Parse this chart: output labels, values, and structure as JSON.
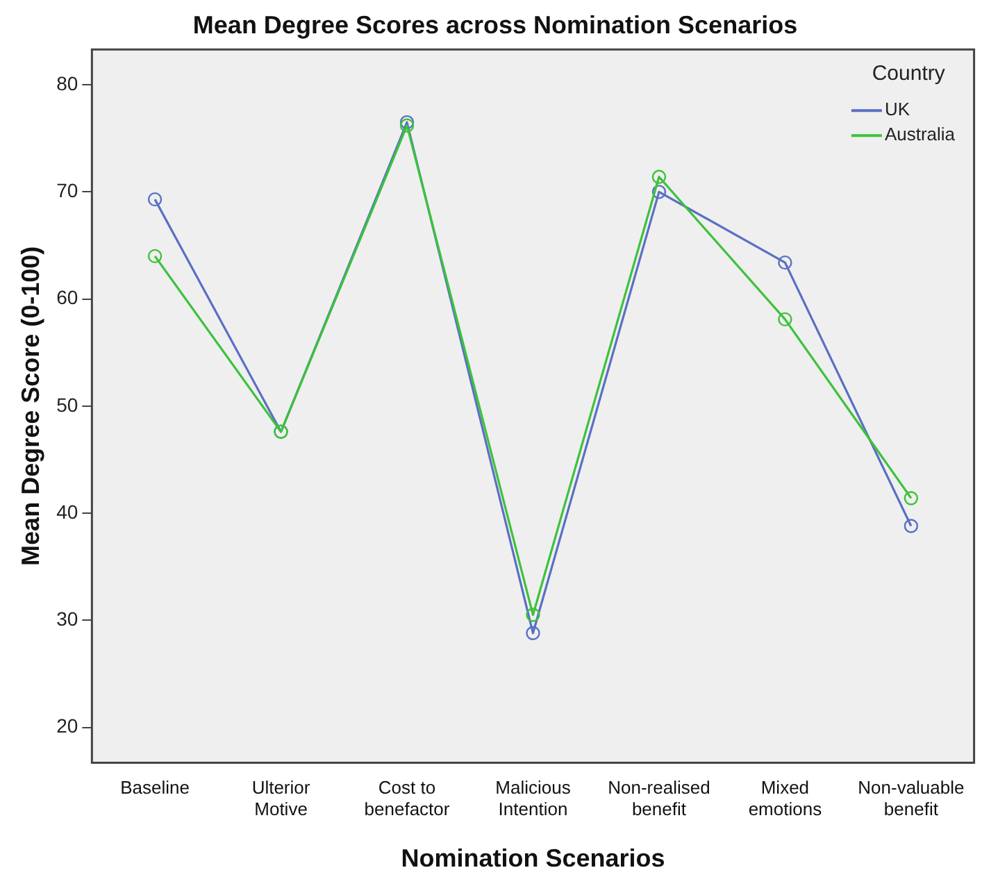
{
  "chart_data": {
    "type": "line",
    "title": "Mean Degree Scores across Nomination Scenarios",
    "xlabel": "Nomination Scenarios",
    "ylabel": "Mean Degree Score (0-100)",
    "legend_title": "Country",
    "categories": [
      "Baseline",
      "Ulterior Motive",
      "Cost to benefactor",
      "Malicious Intention",
      "Non-realised benefit",
      "Mixed emotions",
      "Non-valuable benefit"
    ],
    "series": [
      {
        "name": "UK",
        "color": "#5a6fc4",
        "values": [
          69.3,
          47.6,
          76.5,
          28.8,
          70.0,
          63.4,
          38.8
        ]
      },
      {
        "name": "Australia",
        "color": "#3cc23c",
        "values": [
          64.0,
          47.6,
          76.2,
          30.5,
          71.4,
          58.1,
          41.4
        ]
      }
    ],
    "ylim": [
      16.7,
      83.3
    ],
    "yticks": [
      20,
      30,
      40,
      50,
      60,
      70,
      80
    ],
    "grid": false,
    "legend": "top right",
    "marker": "circle",
    "line_style": "solid"
  }
}
